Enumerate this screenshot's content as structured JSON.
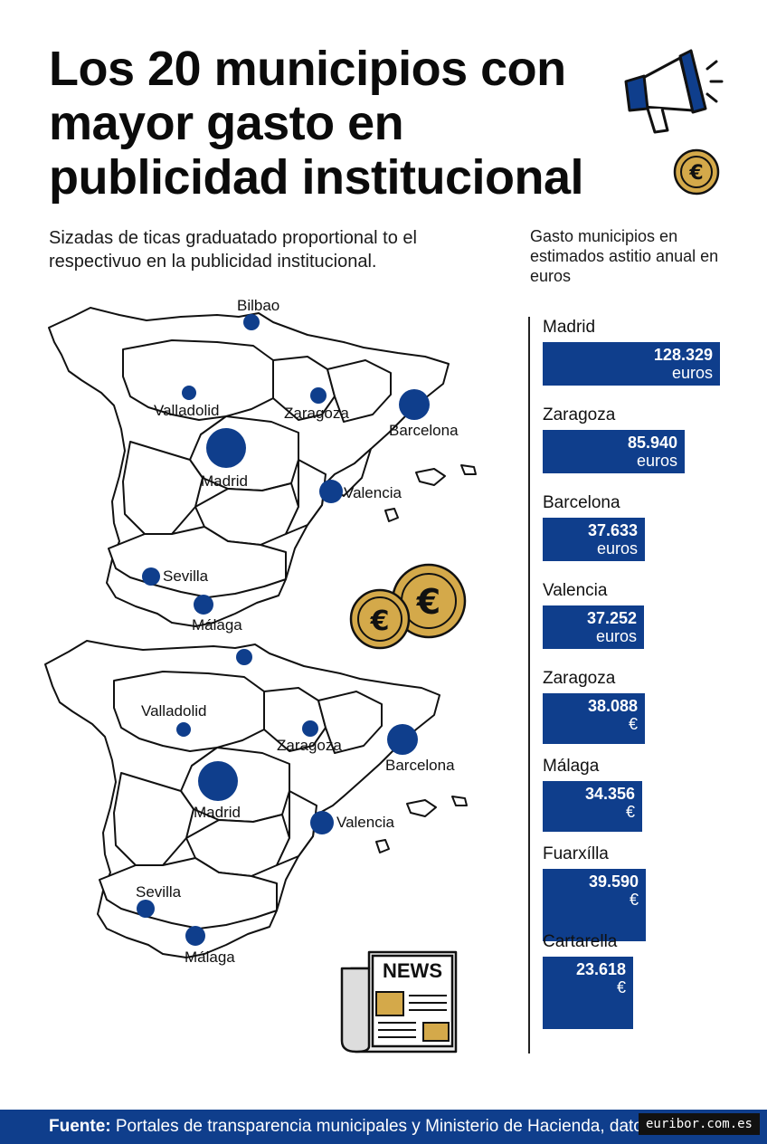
{
  "header": {
    "title": "Los 20 municipios con mayor gasto en publicidad institucional",
    "subtitle": "Sizadas de ticas graduatado proportional to el respectivuo en la publicidad institucional.",
    "side_caption": "Gasto municipios en estimados astitio anual en euros"
  },
  "colors": {
    "accent": "#0f3e8c",
    "coin": "#d4a94a",
    "text": "#111111"
  },
  "icons": [
    "megaphone-icon",
    "euro-coin-icon",
    "euro-coins-icon",
    "newspaper-icon"
  ],
  "news_label": "NEWS",
  "maps": [
    {
      "cities": [
        {
          "name": "Bilbao"
        },
        {
          "name": "Valladolid"
        },
        {
          "name": "Zaragoza"
        },
        {
          "name": "Barcelona"
        },
        {
          "name": "Madrid"
        },
        {
          "name": "Valencia"
        },
        {
          "name": "Sevilla"
        },
        {
          "name": "Málaga"
        }
      ]
    },
    {
      "cities": [
        {
          "name": "Valladolid"
        },
        {
          "name": "Zaragoza"
        },
        {
          "name": "Barcelona"
        },
        {
          "name": "Madrid"
        },
        {
          "name": "Valencia"
        },
        {
          "name": "Sevilla"
        },
        {
          "name": "Málaga"
        }
      ]
    }
  ],
  "chart_data": {
    "type": "bar",
    "orientation": "horizontal",
    "categories": [
      "Madrid",
      "Zaragoza",
      "Barcelona",
      "Valencia",
      "Zaragoza",
      "Málaga",
      "Fuarxílla",
      "Cartarella"
    ],
    "values": [
      128.329,
      85.94,
      37.633,
      37.252,
      38.088,
      34.356,
      39.59,
      23.618
    ],
    "value_labels": [
      "128.329",
      "85.940",
      "37.633",
      "37.252",
      "38.088",
      "34.356",
      "39.590",
      "23.618"
    ],
    "units": [
      "euros",
      "euros",
      "euros",
      "euros",
      "€",
      "€",
      "€",
      "€"
    ],
    "title": "",
    "xlabel": "",
    "ylabel": ""
  },
  "footer": {
    "source_label": "Fuente:",
    "source_text": " Portales de transparencia municipales y Ministerio de Hacienda, datos 2024"
  },
  "watermark": "euribor.com.es"
}
